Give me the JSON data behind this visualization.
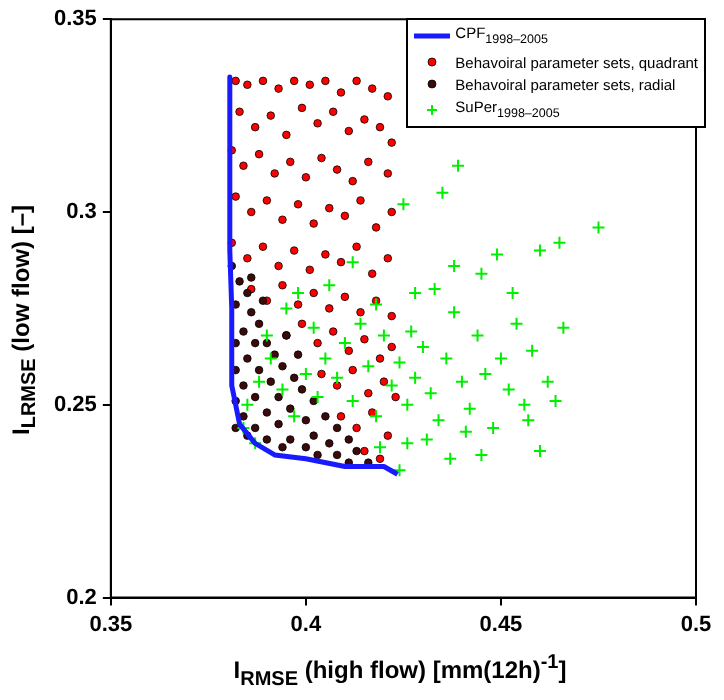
{
  "chart_data": {
    "type": "scatter",
    "xlabel": "I$_{RMSE}$ (high flow) [mm(12h)$^{-1}$]",
    "ylabel": "I$_{LRMSE}$ (low flow) [–]",
    "xlim": [
      0.35,
      0.5
    ],
    "xticks": [
      0.35,
      0.4,
      0.45,
      0.5
    ],
    "ylim": [
      0.2,
      0.35
    ],
    "yticks": [
      0.2,
      0.25,
      0.3,
      0.35
    ],
    "grid": false,
    "legend": "top right",
    "series": [
      {
        "name": "CPF$_{1998–2005}$",
        "type": "line",
        "marker": "none",
        "line_style": "solid",
        "color": "#1a1aff",
        "x": [
          0.3805,
          0.3805,
          0.381,
          0.381,
          0.383,
          0.387,
          0.392,
          0.4,
          0.41,
          0.42,
          0.4235
        ],
        "values": [
          0.335,
          0.29,
          0.275,
          0.255,
          0.245,
          0.24,
          0.237,
          0.236,
          0.234,
          0.234,
          0.232
        ]
      },
      {
        "name": "Behavoiral parameter sets, quadrant",
        "marker": "circle",
        "color": "#ff0000",
        "x": [
          0.382,
          0.385,
          0.389,
          0.393,
          0.397,
          0.401,
          0.405,
          0.409,
          0.413,
          0.417,
          0.421,
          0.383,
          0.387,
          0.391,
          0.395,
          0.399,
          0.403,
          0.407,
          0.411,
          0.415,
          0.419,
          0.422,
          0.381,
          0.384,
          0.388,
          0.392,
          0.396,
          0.4,
          0.404,
          0.408,
          0.412,
          0.416,
          0.421,
          0.382,
          0.386,
          0.39,
          0.394,
          0.398,
          0.402,
          0.406,
          0.41,
          0.414,
          0.418,
          0.422,
          0.381,
          0.385,
          0.389,
          0.393,
          0.397,
          0.401,
          0.405,
          0.409,
          0.413,
          0.417,
          0.421,
          0.386,
          0.39,
          0.394,
          0.398,
          0.402,
          0.406,
          0.41,
          0.414,
          0.418,
          0.422,
          0.395,
          0.399,
          0.403,
          0.407,
          0.411,
          0.415,
          0.419,
          0.422,
          0.404,
          0.408,
          0.412,
          0.416,
          0.42,
          0.423,
          0.409,
          0.413,
          0.417,
          0.421,
          0.415,
          0.419
        ],
        "values": [
          0.334,
          0.333,
          0.334,
          0.332,
          0.334,
          0.333,
          0.334,
          0.331,
          0.334,
          0.332,
          0.33,
          0.326,
          0.322,
          0.325,
          0.32,
          0.327,
          0.323,
          0.326,
          0.321,
          0.324,
          0.322,
          0.318,
          0.316,
          0.312,
          0.315,
          0.31,
          0.313,
          0.309,
          0.314,
          0.311,
          0.308,
          0.313,
          0.31,
          0.304,
          0.3,
          0.303,
          0.298,
          0.302,
          0.297,
          0.301,
          0.299,
          0.303,
          0.296,
          0.3,
          0.292,
          0.288,
          0.291,
          0.286,
          0.29,
          0.285,
          0.289,
          0.287,
          0.291,
          0.284,
          0.288,
          0.28,
          0.277,
          0.281,
          0.276,
          0.279,
          0.275,
          0.278,
          0.274,
          0.277,
          0.273,
          0.268,
          0.271,
          0.266,
          0.269,
          0.264,
          0.267,
          0.262,
          0.265,
          0.258,
          0.255,
          0.259,
          0.253,
          0.256,
          0.252,
          0.247,
          0.244,
          0.248,
          0.242,
          0.238,
          0.236
        ]
      },
      {
        "name": "Behavoiral parameter sets, radial",
        "marker": "circle",
        "color": "#3c0a0a",
        "x": [
          0.381,
          0.383,
          0.385,
          0.382,
          0.386,
          0.388,
          0.384,
          0.382,
          0.387,
          0.39,
          0.392,
          0.385,
          0.382,
          0.388,
          0.394,
          0.397,
          0.391,
          0.384,
          0.382,
          0.387,
          0.393,
          0.399,
          0.402,
          0.396,
          0.39,
          0.384,
          0.382,
          0.387,
          0.393,
          0.4,
          0.405,
          0.408,
          0.402,
          0.396,
          0.39,
          0.385,
          0.394,
          0.4,
          0.406,
          0.411,
          0.413,
          0.408,
          0.403,
          0.411,
          0.416,
          0.398,
          0.395,
          0.389,
          0.386
        ],
        "values": [
          0.286,
          0.282,
          0.279,
          0.276,
          0.274,
          0.271,
          0.269,
          0.266,
          0.266,
          0.266,
          0.263,
          0.262,
          0.259,
          0.259,
          0.26,
          0.257,
          0.256,
          0.255,
          0.251,
          0.252,
          0.252,
          0.254,
          0.251,
          0.249,
          0.248,
          0.247,
          0.244,
          0.244,
          0.245,
          0.246,
          0.247,
          0.244,
          0.242,
          0.241,
          0.241,
          0.242,
          0.239,
          0.239,
          0.24,
          0.241,
          0.238,
          0.237,
          0.237,
          0.235,
          0.235,
          0.263,
          0.268,
          0.277,
          0.283
        ]
      },
      {
        "name": "SuPer$_{1998–2005}$",
        "marker": "cross",
        "color": "#00ee00",
        "x": [
          0.385,
          0.388,
          0.391,
          0.394,
          0.397,
          0.4,
          0.403,
          0.405,
          0.408,
          0.41,
          0.412,
          0.414,
          0.416,
          0.418,
          0.42,
          0.422,
          0.424,
          0.426,
          0.428,
          0.43,
          0.432,
          0.434,
          0.436,
          0.438,
          0.44,
          0.442,
          0.444,
          0.446,
          0.448,
          0.45,
          0.452,
          0.454,
          0.456,
          0.458,
          0.46,
          0.462,
          0.464,
          0.466,
          0.475,
          0.465,
          0.46,
          0.449,
          0.445,
          0.438,
          0.439,
          0.435,
          0.425,
          0.428,
          0.433,
          0.426,
          0.437,
          0.424,
          0.445,
          0.441,
          0.412,
          0.406,
          0.398,
          0.395,
          0.39,
          0.402,
          0.418,
          0.427,
          0.453,
          0.457,
          0.431,
          0.419,
          0.384,
          0.387
        ],
        "values": [
          0.25,
          0.256,
          0.262,
          0.254,
          0.247,
          0.258,
          0.252,
          0.262,
          0.257,
          0.266,
          0.251,
          0.271,
          0.26,
          0.247,
          0.268,
          0.255,
          0.261,
          0.25,
          0.257,
          0.265,
          0.253,
          0.246,
          0.262,
          0.274,
          0.256,
          0.249,
          0.268,
          0.258,
          0.244,
          0.262,
          0.254,
          0.271,
          0.25,
          0.264,
          0.238,
          0.256,
          0.251,
          0.27,
          0.296,
          0.292,
          0.29,
          0.289,
          0.284,
          0.286,
          0.312,
          0.305,
          0.302,
          0.279,
          0.28,
          0.24,
          0.236,
          0.233,
          0.237,
          0.243,
          0.287,
          0.281,
          0.279,
          0.275,
          0.268,
          0.27,
          0.276,
          0.269,
          0.279,
          0.246,
          0.241,
          0.239,
          0.244,
          0.24
        ]
      }
    ]
  }
}
